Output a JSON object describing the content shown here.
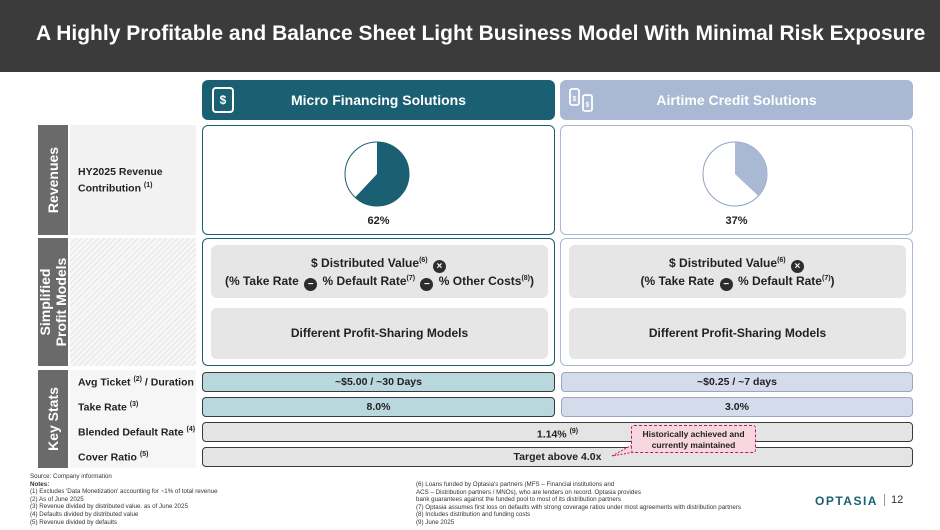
{
  "title": "A Highly Profitable and Balance Sheet Light Business Model With Minimal Risk Exposure",
  "columns": {
    "mfs": {
      "label": "Micro Financing Solutions",
      "icon": "phone-dollar-icon",
      "color": "#1b5f72"
    },
    "acs": {
      "label": "Airtime Credit Solutions",
      "icon": "phone-transfer-icon",
      "color": "#a9b8d3"
    }
  },
  "sections": {
    "revenues": "Revenues",
    "models_line1": "Simplified",
    "models_line2": "Profit Models",
    "stats": "Key Stats"
  },
  "revenue": {
    "label": "HY2025 Revenue Contribution",
    "label_sup": "(1)",
    "mfs_pct": "62%",
    "acs_pct": "37%",
    "mfs_share": 0.62,
    "acs_share": 0.37
  },
  "models": {
    "mfs": {
      "distributed_value": "$ Distributed Value",
      "dv_sup": "(6)",
      "times_symbol": "×",
      "take_rate": "(% Take Rate",
      "minus": "−",
      "default_rate": "% Default Rate",
      "dr_sup": "(7)",
      "other_costs": "% Other Costs",
      "oc_sup": "(8)",
      "close": ")",
      "profit_sharing": "Different Profit-Sharing Models"
    },
    "acs": {
      "distributed_value": "$ Distributed Value",
      "dv_sup": "(6)",
      "times_symbol": "×",
      "take_rate": "(% Take Rate",
      "minus": "−",
      "default_rate": "% Default Rate",
      "dr_sup": "(7)",
      "close": ")",
      "profit_sharing": "Different Profit-Sharing Models"
    }
  },
  "stats": {
    "avg_ticket": {
      "label": "Avg Ticket",
      "sup": "(2)",
      "suffix": " / Duration",
      "mfs": "~$5.00 / ~30 Days",
      "acs": "~$0.25 / ~7 days"
    },
    "take_rate": {
      "label": "Take Rate",
      "sup": "(3)",
      "mfs": "8.0%",
      "acs": "3.0%"
    },
    "default_rate": {
      "label": "Blended Default Rate",
      "sup": "(4)",
      "value": "1.14%",
      "value_sup": "(9)"
    },
    "cover_ratio": {
      "label": "Cover Ratio",
      "sup": "(5)",
      "value": "Target above 4.0x"
    }
  },
  "callout": {
    "line1": "Historically achieved and",
    "line2": "currently maintained"
  },
  "notes_left": [
    "Source: Company information",
    "Notes:",
    "(1)     Excludes 'Data Monetization' accounting for ~1% of total revenue",
    "(2)     As of June 2025",
    "(3)     Revenue divided by distributed value. as of June 2025",
    "(4)     Defaults divided by distributed value",
    "(5)     Revenue divided by defaults"
  ],
  "notes_right": [
    "(6)     Loans funded by Optasia's partners (MFS – Financial institutions and",
    "          ACS – Distribution partners / MNOs), who are lenders on record. Optasia provides",
    "          bank guarantees against the funded pool to most of its distribution partners",
    "(7)     Optasia assumes first loss on defaults with strong coverage ratios under most agreements with distribution partners",
    "(8)     Includes distribution and funding costs",
    "(9)     June 2025"
  ],
  "logo": "OPTASIA",
  "page_number": "12"
}
